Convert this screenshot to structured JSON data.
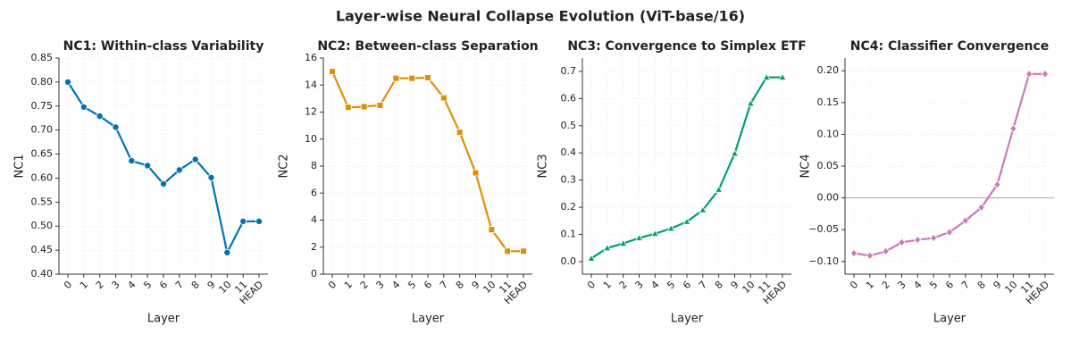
{
  "title": "Layer-wise Neural Collapse Evolution (ViT-base/16)",
  "chart_data": [
    {
      "type": "line",
      "title": "NC1: Within-class Variability",
      "xlabel": "Layer",
      "ylabel": "NC1",
      "categories": [
        "0",
        "1",
        "2",
        "3",
        "4",
        "5",
        "6",
        "7",
        "8",
        "9",
        "10",
        "11",
        "HEAD"
      ],
      "values": [
        0.8,
        0.748,
        0.729,
        0.706,
        0.636,
        0.626,
        0.588,
        0.617,
        0.639,
        0.601,
        0.445,
        0.51,
        0.51
      ],
      "color": "#0173b2",
      "marker": "circle",
      "ylim": [
        0.4,
        0.85
      ],
      "yticks": [
        {
          "value": 0.4,
          "label": "0.40"
        },
        0.45,
        {
          "value": 0.5,
          "label": "0.50"
        },
        0.55,
        {
          "value": 0.6,
          "label": "0.60"
        },
        0.65,
        {
          "value": 0.7,
          "label": "0.70"
        },
        0.75,
        {
          "value": 0.8,
          "label": "0.80"
        },
        0.85
      ],
      "grid": true
    },
    {
      "type": "line",
      "title": "NC2: Between-class Separation",
      "xlabel": "Layer",
      "ylabel": "NC2",
      "categories": [
        "0",
        "1",
        "2",
        "3",
        "4",
        "5",
        "6",
        "7",
        "8",
        "9",
        "10",
        "11",
        "HEAD"
      ],
      "values": [
        15.0,
        12.35,
        12.4,
        12.5,
        14.5,
        14.5,
        14.55,
        13.05,
        10.5,
        7.5,
        3.3,
        1.7,
        1.7
      ],
      "color": "#de8f05",
      "marker": "square",
      "ylim": [
        0,
        16
      ],
      "yticks": [
        0,
        2,
        4,
        6,
        8,
        10,
        12,
        14,
        16
      ],
      "grid": true
    },
    {
      "type": "line",
      "title": "NC3: Convergence to Simplex ETF",
      "xlabel": "Layer",
      "ylabel": "NC3",
      "categories": [
        "0",
        "1",
        "2",
        "3",
        "4",
        "5",
        "6",
        "7",
        "8",
        "9",
        "10",
        "11",
        "HEAD"
      ],
      "values": [
        0.012,
        0.05,
        0.067,
        0.087,
        0.103,
        0.122,
        0.147,
        0.19,
        0.265,
        0.398,
        0.582,
        0.678,
        0.678
      ],
      "color": "#029e73",
      "marker": "triangle",
      "ylim": [
        -0.046,
        0.749
      ],
      "yticks": [
        {
          "value": 0,
          "label": "0.0"
        },
        0.1,
        0.2,
        0.3,
        0.4,
        0.5,
        0.6,
        0.7
      ],
      "grid": true
    },
    {
      "type": "line",
      "title": "NC4: Classifier Convergence",
      "xlabel": "Layer",
      "ylabel": "NC4",
      "categories": [
        "0",
        "1",
        "2",
        "3",
        "4",
        "5",
        "6",
        "7",
        "8",
        "9",
        "10",
        "11",
        "HEAD"
      ],
      "values": [
        -0.087,
        -0.091,
        -0.084,
        -0.07,
        -0.066,
        -0.063,
        -0.054,
        -0.036,
        -0.015,
        0.021,
        0.109,
        0.195,
        0.195
      ],
      "color": "#cc78bc",
      "marker": "diamond",
      "ylim": [
        -0.12,
        0.22
      ],
      "yticks": [
        {
          "value": -0.1,
          "label": "−0.10"
        },
        {
          "value": -0.05,
          "label": "−0.05"
        },
        {
          "value": 0,
          "label": "0.00"
        },
        0.05,
        {
          "value": 0.1,
          "label": "0.10"
        },
        0.15,
        {
          "value": 0.2,
          "label": "0.20"
        }
      ],
      "reference_line": 0,
      "grid": true
    }
  ]
}
